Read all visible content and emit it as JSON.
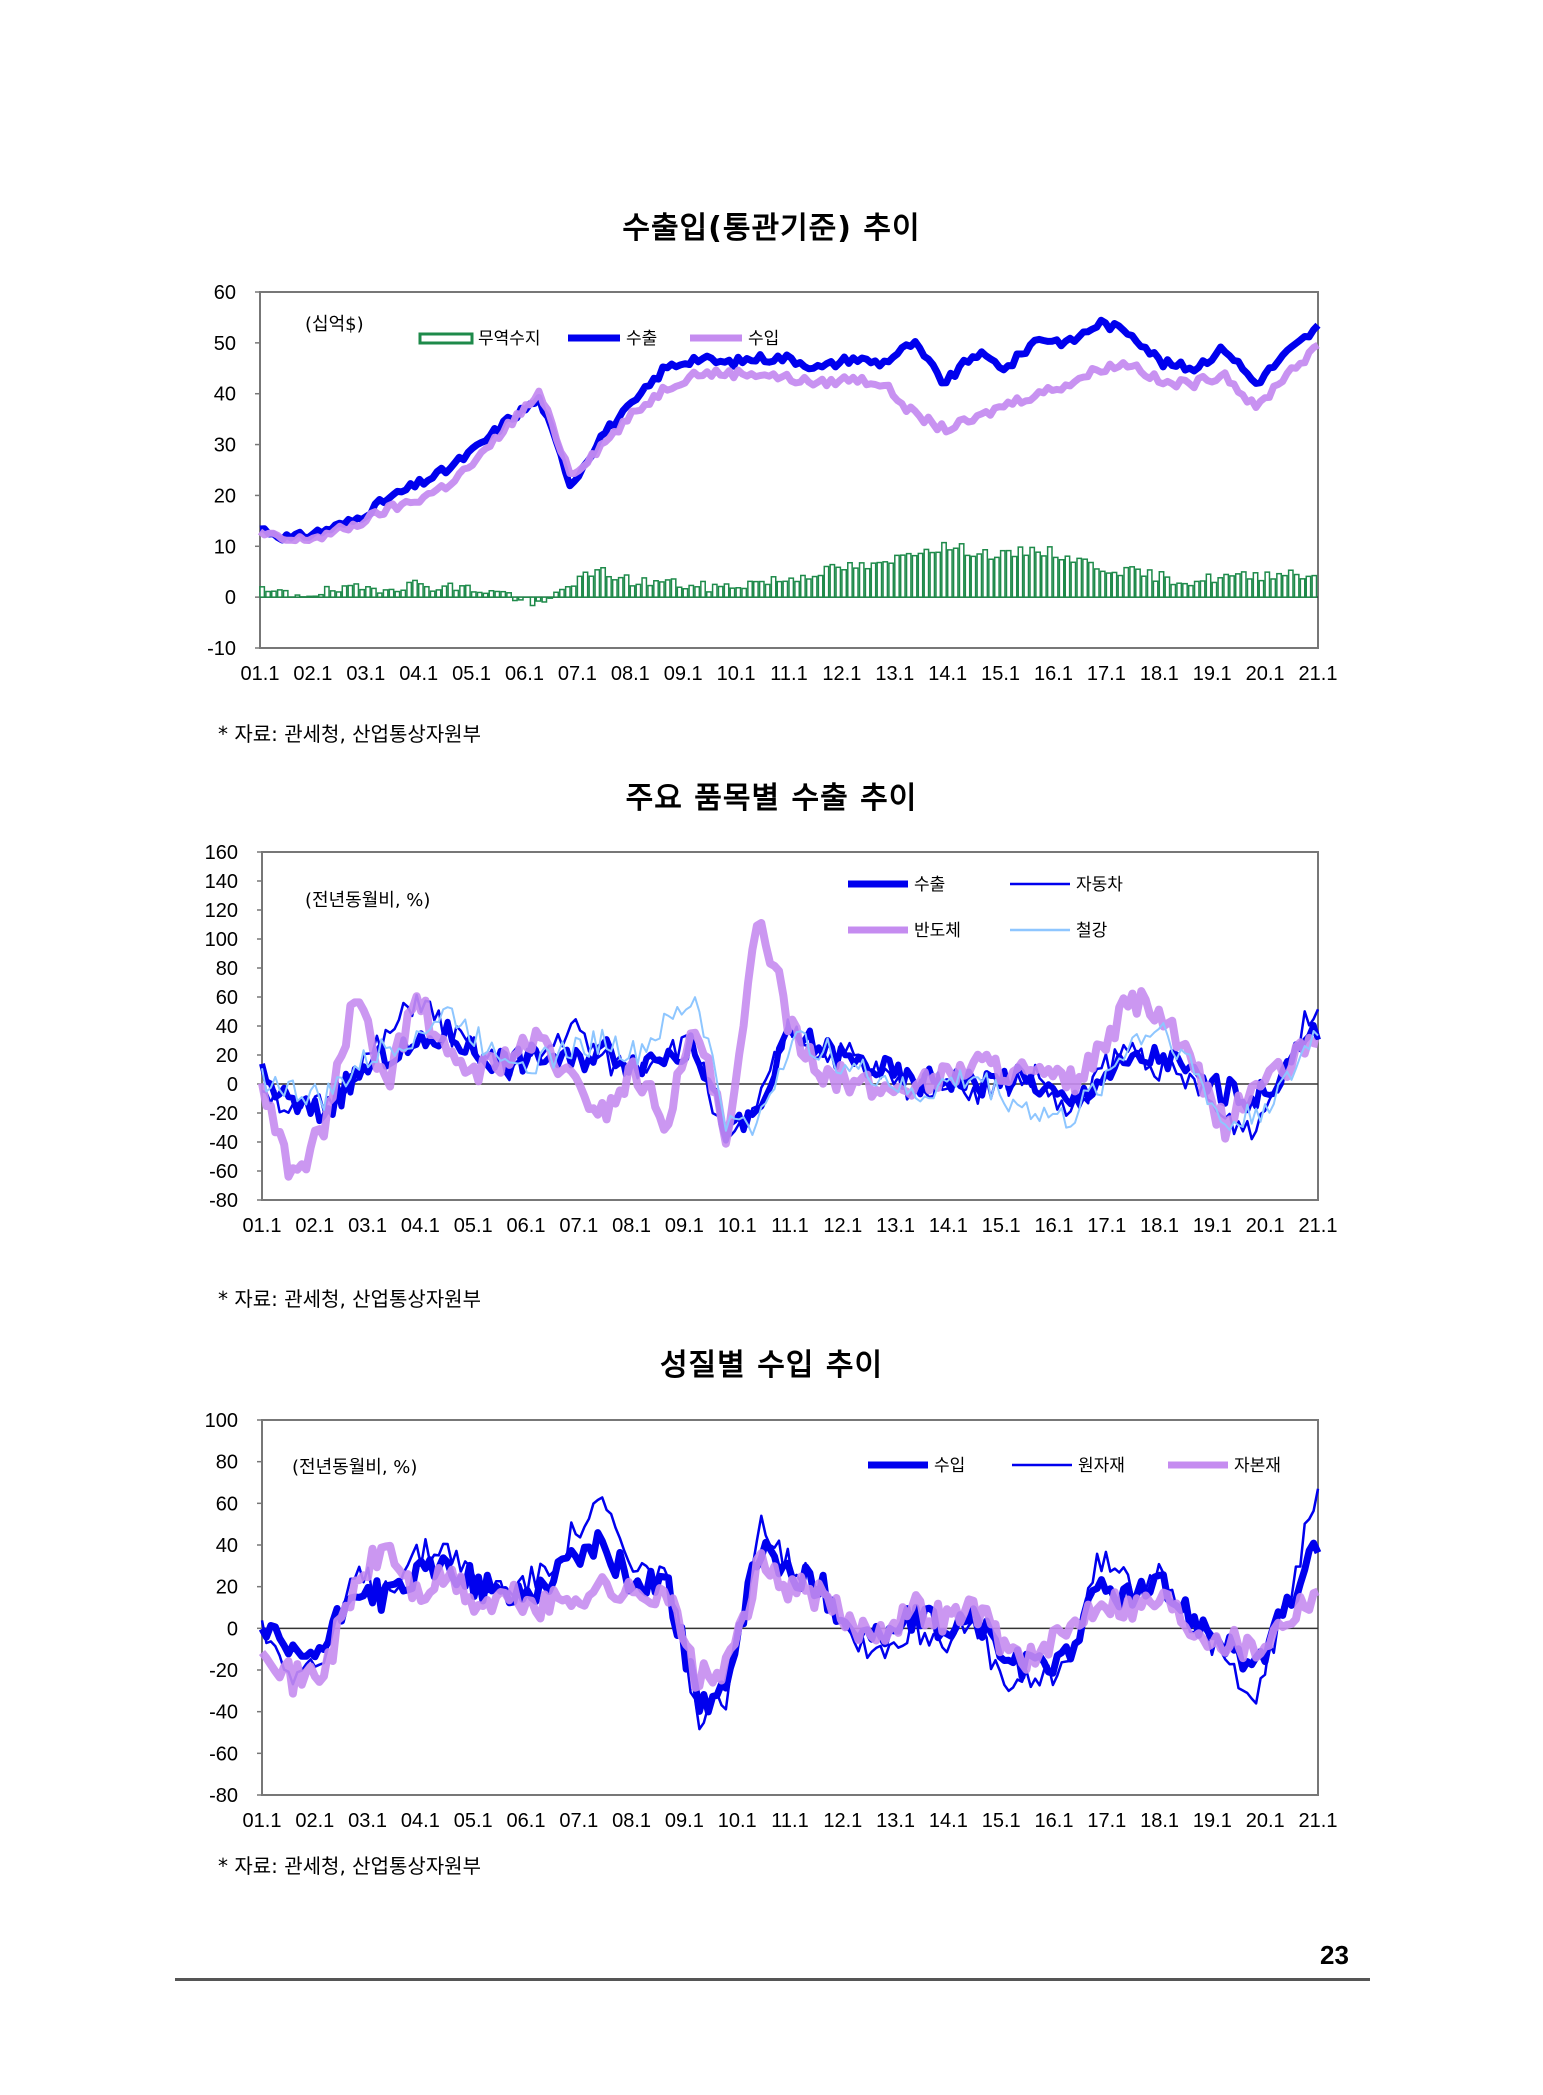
{
  "chart_data": [
    {
      "type": "line",
      "title": "수출입(통관기준) 추이",
      "unit_label": "(십억$)",
      "ylim": [
        -10,
        60
      ],
      "y_ticks": [
        "60",
        "50",
        "40",
        "30",
        "20",
        "10",
        "0",
        "-10"
      ],
      "x_ticks": [
        "01.1",
        "02.1",
        "03.1",
        "04.1",
        "05.1",
        "06.1",
        "07.1",
        "08.1",
        "09.1",
        "10.1",
        "11.1",
        "12.1",
        "13.1",
        "14.1",
        "15.1",
        "16.1",
        "17.1",
        "18.1",
        "19.1",
        "20.1",
        "21.1"
      ],
      "legend": [
        "무역수지",
        "수출",
        "수입"
      ],
      "series": [
        {
          "name": "수출",
          "color": "#0000ee",
          "values": [
            13.5,
            11.5,
            13,
            15,
            19,
            22,
            25,
            29.5,
            35,
            39,
            22,
            32,
            38,
            45,
            47,
            46,
            47,
            47,
            45,
            47,
            46,
            50,
            42,
            48,
            45,
            51,
            50,
            54,
            52,
            46,
            45,
            49,
            42,
            48,
            53
          ]
        },
        {
          "name": "수입",
          "color": "#c58cf0",
          "values": [
            12.5,
            11,
            12,
            14,
            17,
            19,
            22,
            27,
            34,
            40,
            24,
            30,
            36,
            41,
            44,
            44,
            44,
            43,
            42,
            43,
            42,
            36,
            33,
            35,
            38,
            40,
            42,
            45,
            46,
            42,
            42,
            44,
            37,
            44,
            49
          ]
        },
        {
          "name": "무역수지",
          "color": "#1e8a4a",
          "values": [
            1,
            0.5,
            1,
            1.5,
            2,
            2.5,
            2,
            1.5,
            0.5,
            -2,
            3,
            5,
            3,
            3,
            2,
            2,
            3,
            3.5,
            5,
            6,
            6,
            9,
            10,
            9,
            8,
            9.5,
            8,
            6,
            5,
            4,
            3,
            4,
            4,
            5,
            4
          ]
        }
      ]
    },
    {
      "type": "line",
      "title": "주요 품목별 수출 추이",
      "unit_label": "(전년동월비, %)",
      "ylim": [
        -80,
        160
      ],
      "y_ticks": [
        "160",
        "140",
        "120",
        "100",
        "80",
        "60",
        "40",
        "20",
        "0",
        "-20",
        "-40",
        "-60",
        "-80"
      ],
      "x_ticks": [
        "01.1",
        "02.1",
        "03.1",
        "04.1",
        "05.1",
        "06.1",
        "07.1",
        "08.1",
        "09.1",
        "10.1",
        "11.1",
        "12.1",
        "13.1",
        "14.1",
        "15.1",
        "16.1",
        "17.1",
        "18.1",
        "19.1",
        "20.1",
        "21.1"
      ],
      "legend": [
        "수출",
        "자동차",
        "반도체",
        "철강"
      ],
      "series": [
        {
          "name": "수출",
          "color": "#0000ee",
          "values": [
            5,
            -15,
            -20,
            5,
            20,
            25,
            35,
            20,
            15,
            20,
            15,
            25,
            15,
            20,
            25,
            -35,
            -20,
            35,
            25,
            15,
            10,
            0,
            5,
            0,
            5,
            0,
            -15,
            5,
            15,
            20,
            5,
            -5,
            -10,
            10,
            40
          ]
        },
        {
          "name": "자동차",
          "color": "#0000ee",
          "values": [
            0,
            -20,
            -15,
            10,
            30,
            60,
            35,
            20,
            10,
            20,
            40,
            15,
            10,
            25,
            25,
            -45,
            -15,
            40,
            20,
            20,
            5,
            -5,
            5,
            -5,
            0,
            5,
            -25,
            10,
            25,
            10,
            0,
            -25,
            -30,
            15,
            60
          ]
        },
        {
          "name": "반도체",
          "color": "#c58cf0",
          "values": [
            0,
            -65,
            -30,
            60,
            0,
            60,
            15,
            10,
            20,
            30,
            0,
            -20,
            10,
            -25,
            40,
            -45,
            120,
            40,
            10,
            0,
            -5,
            0,
            5,
            15,
            10,
            5,
            0,
            20,
            60,
            45,
            10,
            -30,
            0,
            10,
            35
          ]
        },
        {
          "name": "철강",
          "color": "#8ec6ff",
          "values": [
            5,
            -5,
            -10,
            10,
            25,
            35,
            50,
            30,
            20,
            15,
            25,
            30,
            20,
            40,
            60,
            -30,
            -25,
            30,
            25,
            10,
            5,
            -10,
            0,
            5,
            -10,
            -20,
            -25,
            0,
            30,
            40,
            10,
            -30,
            -20,
            0,
            40
          ]
        }
      ]
    },
    {
      "type": "line",
      "title": "성질별 수입 추이",
      "unit_label": "(전년동월비, %)",
      "ylim": [
        -80,
        100
      ],
      "y_ticks": [
        "100",
        "80",
        "60",
        "40",
        "20",
        "0",
        "-20",
        "-40",
        "-60",
        "-80"
      ],
      "x_ticks": [
        "01.1",
        "02.1",
        "03.1",
        "04.1",
        "05.1",
        "06.1",
        "07.1",
        "08.1",
        "09.1",
        "10.1",
        "11.1",
        "12.1",
        "13.1",
        "14.1",
        "15.1",
        "16.1",
        "17.1",
        "18.1",
        "19.1",
        "20.1",
        "21.1"
      ],
      "legend": [
        "수입",
        "원자재",
        "자본재"
      ],
      "series": [
        {
          "name": "수입",
          "color": "#0000ee",
          "values": [
            0,
            -15,
            -10,
            20,
            15,
            25,
            30,
            20,
            15,
            20,
            35,
            40,
            20,
            25,
            -35,
            -30,
            40,
            25,
            20,
            0,
            -5,
            5,
            0,
            5,
            -15,
            -20,
            -10,
            20,
            15,
            20,
            5,
            -5,
            -20,
            10,
            40
          ]
        },
        {
          "name": "원자재",
          "color": "#0000ee",
          "values": [
            0,
            -20,
            -15,
            25,
            20,
            35,
            40,
            20,
            20,
            25,
            45,
            60,
            25,
            30,
            -45,
            -35,
            55,
            30,
            25,
            -5,
            -10,
            0,
            -5,
            0,
            -30,
            -25,
            -15,
            35,
            20,
            30,
            0,
            -15,
            -30,
            10,
            70
          ]
        },
        {
          "name": "자본재",
          "color": "#c58cf0",
          "values": [
            -5,
            -25,
            -20,
            20,
            40,
            15,
            25,
            10,
            15,
            10,
            15,
            20,
            15,
            20,
            -25,
            -20,
            30,
            20,
            15,
            0,
            0,
            10,
            5,
            10,
            -10,
            -15,
            0,
            15,
            10,
            15,
            0,
            -5,
            -10,
            5,
            20
          ]
        }
      ]
    }
  ],
  "sources": [
    "* 자료: 관세청, 산업통상자원부",
    "* 자료: 관세청, 산업통상자원부",
    "* 자료: 관세청, 산업통상자원부"
  ],
  "page_number": "23"
}
